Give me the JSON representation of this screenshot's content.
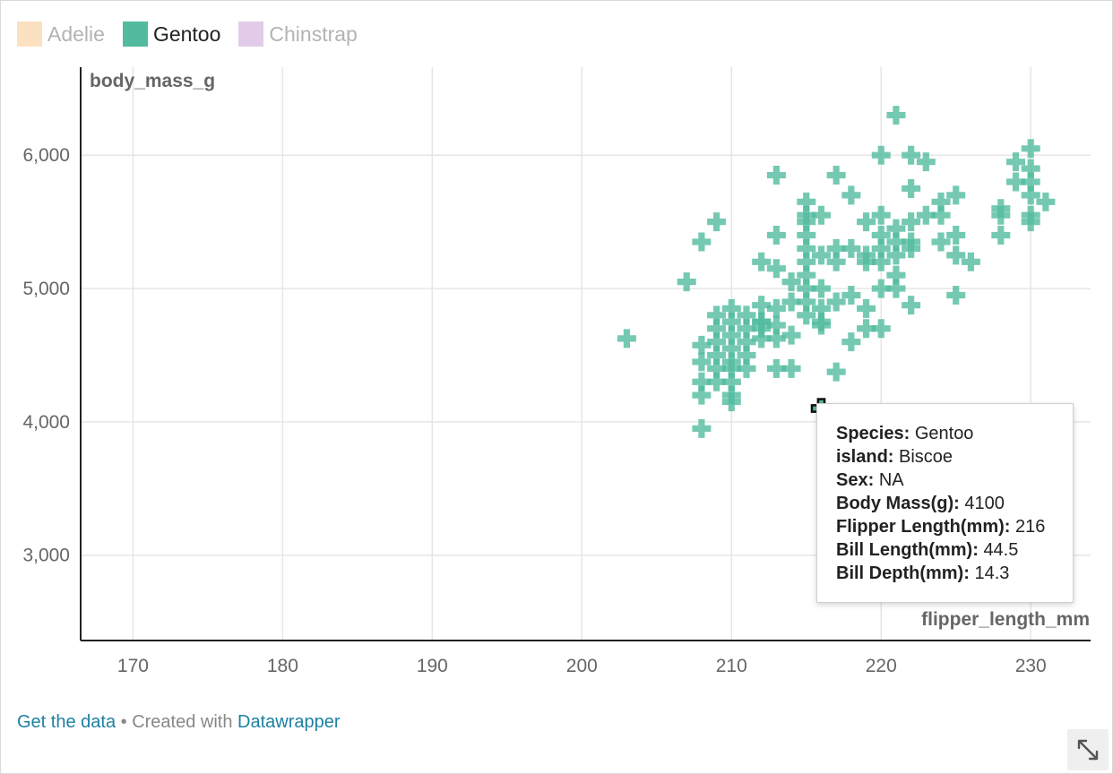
{
  "legend": {
    "items": [
      {
        "label": "Adelie",
        "color": "#fbe0c2",
        "active": false
      },
      {
        "label": "Gentoo",
        "color": "#52bb9f",
        "active": true
      },
      {
        "label": "Chinstrap",
        "color": "#e2cbe9",
        "active": false
      }
    ]
  },
  "tooltip": {
    "rows": [
      {
        "key": "Species:",
        "value": "Gentoo"
      },
      {
        "key": "island:",
        "value": "Biscoe"
      },
      {
        "key": "Sex:",
        "value": "NA"
      },
      {
        "key": "Body Mass(g):",
        "value": "4100"
      },
      {
        "key": "Flipper Length(mm):",
        "value": "216"
      },
      {
        "key": "Bill Length(mm):",
        "value": "44.5"
      },
      {
        "key": "Bill Depth(mm):",
        "value": "14.3"
      }
    ]
  },
  "footer": {
    "get_data": "Get the data",
    "separator": " • Created with ",
    "datawrapper": "Datawrapper"
  },
  "chart_data": {
    "type": "scatter",
    "xlabel": "flipper_length_mm",
    "ylabel": "body_mass_g",
    "x_ticks": [
      "170",
      "180",
      "190",
      "200",
      "210",
      "220",
      "230"
    ],
    "y_ticks": [
      "3,000",
      "4,000",
      "5,000",
      "6,000"
    ],
    "xlim": [
      166.5,
      234
    ],
    "ylim": [
      2360,
      6660
    ],
    "grid": true,
    "marker": "plus",
    "highlighted_point": {
      "x": 216,
      "y": 4100
    },
    "series": [
      {
        "name": "Gentoo",
        "color": "#52bb9f",
        "points": [
          [
            203,
            4625
          ],
          [
            207,
            5050
          ],
          [
            208,
            5350
          ],
          [
            208,
            4575
          ],
          [
            208,
            4450
          ],
          [
            208,
            4300
          ],
          [
            208,
            4200
          ],
          [
            208,
            3950
          ],
          [
            209,
            5500
          ],
          [
            209,
            4800
          ],
          [
            209,
            4700
          ],
          [
            209,
            4600
          ],
          [
            209,
            4500
          ],
          [
            209,
            4400
          ],
          [
            209,
            4300
          ],
          [
            210,
            4850
          ],
          [
            210,
            4750
          ],
          [
            210,
            4650
          ],
          [
            210,
            4550
          ],
          [
            210,
            4450
          ],
          [
            210,
            4400
          ],
          [
            210,
            4300
          ],
          [
            210,
            4200
          ],
          [
            210,
            4150
          ],
          [
            211,
            4800
          ],
          [
            211,
            4700
          ],
          [
            211,
            4600
          ],
          [
            211,
            4500
          ],
          [
            211,
            4400
          ],
          [
            212,
            5200
          ],
          [
            212,
            4875
          ],
          [
            212,
            4750
          ],
          [
            212,
            4700
          ],
          [
            212,
            4750
          ],
          [
            212,
            4625
          ],
          [
            213,
            5850
          ],
          [
            213,
            5400
          ],
          [
            213,
            5150
          ],
          [
            213,
            4850
          ],
          [
            213,
            4725
          ],
          [
            213,
            4625
          ],
          [
            213,
            4400
          ],
          [
            214,
            5050
          ],
          [
            214,
            4900
          ],
          [
            214,
            4650
          ],
          [
            214,
            4400
          ],
          [
            215,
            5650
          ],
          [
            215,
            5550
          ],
          [
            215,
            5500
          ],
          [
            215,
            5400
          ],
          [
            215,
            5300
          ],
          [
            215,
            5200
          ],
          [
            215,
            5100
          ],
          [
            215,
            5000
          ],
          [
            215,
            4900
          ],
          [
            215,
            4800
          ],
          [
            216,
            5550
          ],
          [
            216,
            5250
          ],
          [
            216,
            5000
          ],
          [
            216,
            4850
          ],
          [
            216,
            4750
          ],
          [
            216,
            4725
          ],
          [
            217,
            5850
          ],
          [
            217,
            5300
          ],
          [
            217,
            5200
          ],
          [
            217,
            4900
          ],
          [
            217,
            4375
          ],
          [
            218,
            5700
          ],
          [
            218,
            5300
          ],
          [
            218,
            4950
          ],
          [
            218,
            4600
          ],
          [
            219,
            5500
          ],
          [
            219,
            5250
          ],
          [
            219,
            5200
          ],
          [
            219,
            4850
          ],
          [
            219,
            4700
          ],
          [
            220,
            6000
          ],
          [
            220,
            5550
          ],
          [
            220,
            5400
          ],
          [
            220,
            5300
          ],
          [
            220,
            5200
          ],
          [
            220,
            5000
          ],
          [
            220,
            4700
          ],
          [
            221,
            6300
          ],
          [
            221,
            5450
          ],
          [
            221,
            5350
          ],
          [
            221,
            5250
          ],
          [
            221,
            5100
          ],
          [
            221,
            5000
          ],
          [
            222,
            6000
          ],
          [
            222,
            5750
          ],
          [
            222,
            5500
          ],
          [
            222,
            5350
          ],
          [
            222,
            5300
          ],
          [
            222,
            4875
          ],
          [
            223,
            5950
          ],
          [
            223,
            5550
          ],
          [
            224,
            5650
          ],
          [
            224,
            5550
          ],
          [
            224,
            5350
          ],
          [
            225,
            5700
          ],
          [
            225,
            5400
          ],
          [
            225,
            5250
          ],
          [
            225,
            4950
          ],
          [
            226,
            5200
          ],
          [
            228,
            5600
          ],
          [
            228,
            5550
          ],
          [
            228,
            5400
          ],
          [
            229,
            5950
          ],
          [
            229,
            5800
          ],
          [
            230,
            6050
          ],
          [
            230,
            5900
          ],
          [
            230,
            5800
          ],
          [
            230,
            5700
          ],
          [
            230,
            5550
          ],
          [
            230,
            5500
          ],
          [
            231,
            5650
          ]
        ]
      }
    ]
  }
}
